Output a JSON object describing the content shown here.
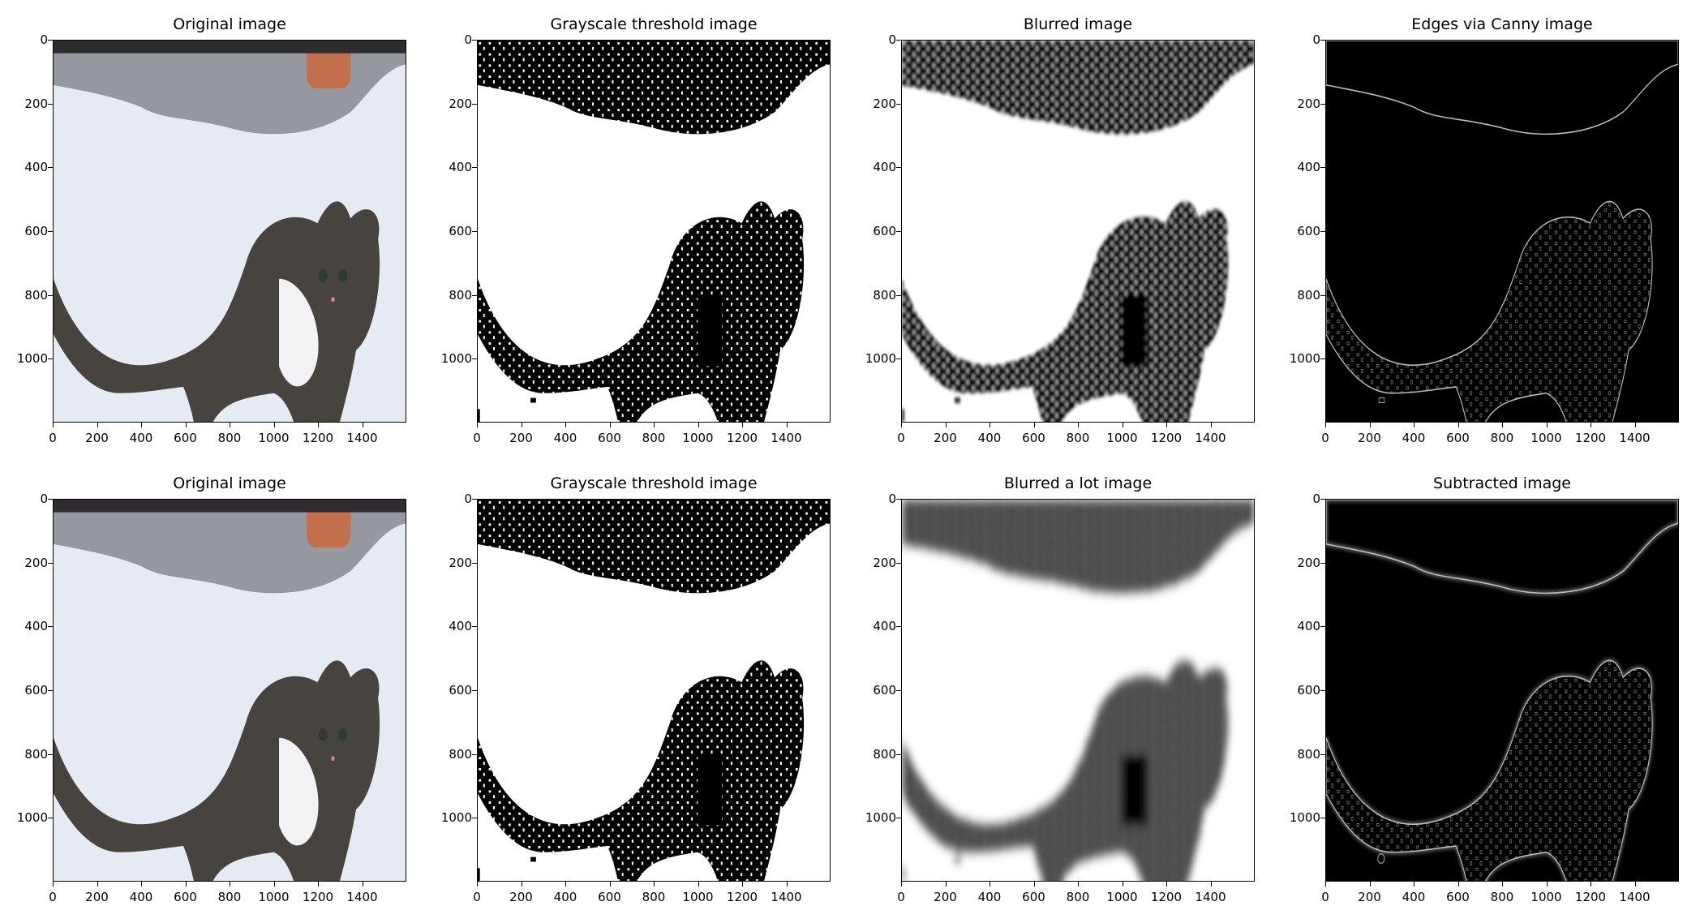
{
  "chart_data": [
    {
      "type": "image",
      "title": "Original image",
      "variant": "original",
      "xticks": [
        "0",
        "200",
        "400",
        "600",
        "800",
        "1000",
        "1200",
        "1400"
      ],
      "yticks": [
        "0",
        "200",
        "400",
        "600",
        "800",
        "1000"
      ],
      "xlim": [
        0,
        1600
      ],
      "ylim": [
        1200,
        0
      ]
    },
    {
      "type": "image",
      "title": "Grayscale threshold image",
      "variant": "threshold",
      "xticks": [
        "0",
        "200",
        "400",
        "600",
        "800",
        "1000",
        "1200",
        "1400"
      ],
      "yticks": [
        "0",
        "200",
        "400",
        "600",
        "800",
        "1000"
      ],
      "xlim": [
        0,
        1600
      ],
      "ylim": [
        1200,
        0
      ]
    },
    {
      "type": "image",
      "title": "Blurred image",
      "variant": "blurred",
      "xticks": [
        "0",
        "200",
        "400",
        "600",
        "800",
        "1000",
        "1200",
        "1400"
      ],
      "yticks": [
        "0",
        "200",
        "400",
        "600",
        "800",
        "1000"
      ],
      "xlim": [
        0,
        1600
      ],
      "ylim": [
        1200,
        0
      ]
    },
    {
      "type": "image",
      "title": "Edges via Canny image",
      "variant": "canny",
      "xticks": [
        "0",
        "200",
        "400",
        "600",
        "800",
        "1000",
        "1200",
        "1400"
      ],
      "yticks": [
        "0",
        "200",
        "400",
        "600",
        "800",
        "1000"
      ],
      "xlim": [
        0,
        1600
      ],
      "ylim": [
        1200,
        0
      ]
    },
    {
      "type": "image",
      "title": "Original image",
      "variant": "original",
      "xticks": [
        "0",
        "200",
        "400",
        "600",
        "800",
        "1000",
        "1200",
        "1400"
      ],
      "yticks": [
        "0",
        "200",
        "400",
        "600",
        "800",
        "1000"
      ],
      "xlim": [
        0,
        1600
      ],
      "ylim": [
        1200,
        0
      ]
    },
    {
      "type": "image",
      "title": "Grayscale threshold image",
      "variant": "threshold",
      "xticks": [
        "0",
        "200",
        "400",
        "600",
        "800",
        "1000",
        "1200",
        "1400"
      ],
      "yticks": [
        "0",
        "200",
        "400",
        "600",
        "800",
        "1000"
      ],
      "xlim": [
        0,
        1600
      ],
      "ylim": [
        1200,
        0
      ]
    },
    {
      "type": "image",
      "title": "Blurred a lot image",
      "variant": "blurlot",
      "xticks": [
        "0",
        "200",
        "400",
        "600",
        "800",
        "1000",
        "1200",
        "1400"
      ],
      "yticks": [
        "0",
        "200",
        "400",
        "600",
        "800",
        "1000"
      ],
      "xlim": [
        0,
        1600
      ],
      "ylim": [
        1200,
        0
      ]
    },
    {
      "type": "image",
      "title": "Subtracted image",
      "variant": "subtracted",
      "xticks": [
        "0",
        "200",
        "400",
        "600",
        "800",
        "1000",
        "1200",
        "1400"
      ],
      "yticks": [
        "0",
        "200",
        "400",
        "600",
        "800",
        "1000"
      ],
      "xlim": [
        0,
        1600
      ],
      "ylim": [
        1200,
        0
      ]
    }
  ],
  "colors": {
    "snow": "#e6eaf2",
    "cat": "#47433f",
    "black": "#000000",
    "white": "#ffffff",
    "edge": "#bdbdbd"
  }
}
